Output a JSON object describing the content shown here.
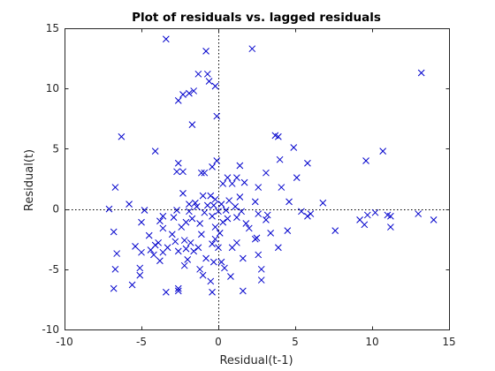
{
  "chart_data": {
    "type": "scatter",
    "title": "Plot of residuals vs. lagged residuals",
    "xlabel": "Residual(t-1)",
    "ylabel": "Residual(t)",
    "xlim": [
      -10,
      15
    ],
    "ylim": [
      -10,
      15
    ],
    "xticks": [
      -10,
      -5,
      0,
      5,
      10,
      15
    ],
    "yticks": [
      -10,
      -5,
      0,
      5,
      10,
      15
    ],
    "grid": false,
    "reference_lines": {
      "x": 0,
      "y": 0
    },
    "marker": "x",
    "marker_color": "#0000cc",
    "series": [
      {
        "points": [
          [
            -3.4,
            14.1
          ],
          [
            -0.8,
            13.1
          ],
          [
            2.2,
            13.3
          ],
          [
            13.2,
            11.3
          ],
          [
            -1.3,
            11.2
          ],
          [
            -0.7,
            11.2
          ],
          [
            -0.6,
            10.6
          ],
          [
            -0.2,
            10.2
          ],
          [
            -1.9,
            9.6
          ],
          [
            -2.3,
            9.5
          ],
          [
            -2.6,
            9.0
          ],
          [
            -1.6,
            9.8
          ],
          [
            -0.1,
            7.7
          ],
          [
            -1.7,
            7.0
          ],
          [
            -6.3,
            6.0
          ],
          [
            3.7,
            6.1
          ],
          [
            3.9,
            6.0
          ],
          [
            4.9,
            5.1
          ],
          [
            -4.1,
            4.8
          ],
          [
            10.7,
            4.8
          ],
          [
            4.0,
            4.1
          ],
          [
            9.6,
            4.0
          ],
          [
            -0.1,
            4.0
          ],
          [
            -2.6,
            3.8
          ],
          [
            5.8,
            3.8
          ],
          [
            -0.4,
            3.5
          ],
          [
            1.4,
            3.6
          ],
          [
            -2.7,
            3.1
          ],
          [
            -2.3,
            3.1
          ],
          [
            -1.1,
            3.0
          ],
          [
            -0.9,
            3.0
          ],
          [
            3.1,
            3.0
          ],
          [
            5.1,
            2.6
          ],
          [
            0.6,
            2.6
          ],
          [
            1.2,
            2.6
          ],
          [
            1.7,
            2.2
          ],
          [
            0.3,
            2.1
          ],
          [
            0.9,
            2.1
          ],
          [
            -6.7,
            1.8
          ],
          [
            2.6,
            1.8
          ],
          [
            4.1,
            1.8
          ],
          [
            -2.3,
            1.3
          ],
          [
            -1.0,
            1.1
          ],
          [
            -0.5,
            1.1
          ],
          [
            1.4,
            1.0
          ],
          [
            -0.2,
            0.8
          ],
          [
            0.7,
            0.7
          ],
          [
            -1.5,
            0.5
          ],
          [
            -1.9,
            0.4
          ],
          [
            -0.7,
            0.3
          ],
          [
            2.4,
            0.6
          ],
          [
            4.6,
            0.6
          ],
          [
            -5.8,
            0.4
          ],
          [
            -1.4,
            0.2
          ],
          [
            -0.3,
            0.3
          ],
          [
            0.2,
            0.4
          ],
          [
            1.1,
            0.2
          ],
          [
            6.8,
            0.5
          ],
          [
            -7.1,
            0.0
          ],
          [
            -4.8,
            -0.1
          ],
          [
            -2.7,
            -0.1
          ],
          [
            -1.9,
            -0.2
          ],
          [
            -0.9,
            -0.3
          ],
          [
            0.0,
            -0.2
          ],
          [
            0.5,
            -0.1
          ],
          [
            1.5,
            -0.2
          ],
          [
            2.6,
            -0.4
          ],
          [
            3.2,
            -0.5
          ],
          [
            5.4,
            -0.2
          ],
          [
            6.0,
            -0.4
          ],
          [
            10.2,
            -0.3
          ],
          [
            11.0,
            -0.5
          ],
          [
            13.0,
            -0.4
          ],
          [
            -3.6,
            -0.6
          ],
          [
            -2.9,
            -0.7
          ],
          [
            -1.7,
            -0.8
          ],
          [
            -0.4,
            -0.6
          ],
          [
            0.6,
            -0.8
          ],
          [
            1.2,
            -0.7
          ],
          [
            3.1,
            -0.9
          ],
          [
            5.8,
            -0.6
          ],
          [
            9.7,
            -0.5
          ],
          [
            11.2,
            -0.6
          ],
          [
            14.0,
            -0.9
          ],
          [
            -5.0,
            -1.1
          ],
          [
            -3.8,
            -1.0
          ],
          [
            -2.1,
            -1.1
          ],
          [
            -1.2,
            -1.2
          ],
          [
            0.3,
            -1.1
          ],
          [
            1.8,
            -1.2
          ],
          [
            9.2,
            -0.9
          ],
          [
            -6.8,
            -1.9
          ],
          [
            -3.6,
            -1.6
          ],
          [
            -2.4,
            -1.5
          ],
          [
            -0.2,
            -1.5
          ],
          [
            2.0,
            -1.6
          ],
          [
            4.5,
            -1.8
          ],
          [
            7.6,
            -1.8
          ],
          [
            11.2,
            -1.5
          ],
          [
            9.5,
            -1.3
          ],
          [
            -4.5,
            -2.2
          ],
          [
            -3.0,
            -2.1
          ],
          [
            -1.1,
            -2.1
          ],
          [
            0.1,
            -2.0
          ],
          [
            3.4,
            -2.0
          ],
          [
            -2.2,
            -2.6
          ],
          [
            -0.2,
            -2.5
          ],
          [
            2.4,
            -2.5
          ],
          [
            -5.4,
            -3.1
          ],
          [
            -3.9,
            -2.8
          ],
          [
            -2.8,
            -2.7
          ],
          [
            -1.8,
            -2.8
          ],
          [
            -0.4,
            -2.9
          ],
          [
            1.2,
            -2.8
          ],
          [
            2.5,
            -2.4
          ],
          [
            -4.4,
            -3.4
          ],
          [
            -4.1,
            -3.0
          ],
          [
            -3.3,
            -3.2
          ],
          [
            -2.1,
            -3.3
          ],
          [
            -1.3,
            -3.2
          ],
          [
            0.9,
            -3.2
          ],
          [
            3.9,
            -3.2
          ],
          [
            -6.6,
            -3.7
          ],
          [
            -5.0,
            -3.6
          ],
          [
            -4.2,
            -3.8
          ],
          [
            -3.6,
            -3.6
          ],
          [
            -2.6,
            -3.5
          ],
          [
            -1.6,
            -3.5
          ],
          [
            0.0,
            -3.2
          ],
          [
            2.6,
            -3.8
          ],
          [
            -3.8,
            -4.3
          ],
          [
            -2.0,
            -4.2
          ],
          [
            -0.8,
            -4.1
          ],
          [
            -0.3,
            -4.4
          ],
          [
            0.2,
            -4.4
          ],
          [
            1.6,
            -4.1
          ],
          [
            -5.1,
            -4.9
          ],
          [
            -2.2,
            -4.7
          ],
          [
            -1.2,
            -5.0
          ],
          [
            0.4,
            -4.9
          ],
          [
            2.8,
            -5.0
          ],
          [
            -6.7,
            -5.0
          ],
          [
            -5.1,
            -5.5
          ],
          [
            -1.0,
            -5.5
          ],
          [
            0.8,
            -5.6
          ],
          [
            2.8,
            -5.9
          ],
          [
            -5.6,
            -6.3
          ],
          [
            -0.5,
            -6.0
          ],
          [
            -6.8,
            -6.6
          ],
          [
            -3.4,
            -6.9
          ],
          [
            -2.6,
            -6.8
          ],
          [
            -0.4,
            -6.9
          ],
          [
            1.6,
            -6.8
          ],
          [
            -2.6,
            -6.6
          ]
        ]
      }
    ]
  }
}
